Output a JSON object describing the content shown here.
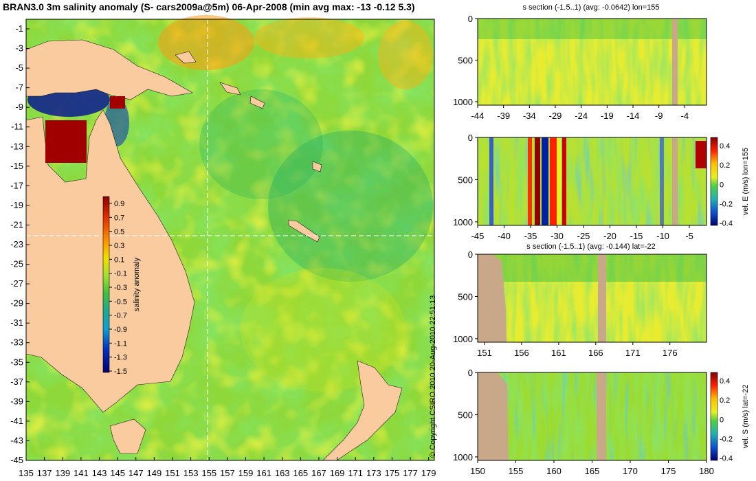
{
  "main_map": {
    "title": "BRAN3.0 3m salinity anomaly (S- cars2009a@5m) 06-Apr-2008 (min avg max: -13 -0.12 5.3)",
    "lat_ticks": [
      "-1",
      "-3",
      "-5",
      "-7",
      "-9",
      "-11",
      "-13",
      "-15",
      "-17",
      "-19",
      "-21",
      "-23",
      "-25",
      "-27",
      "-29",
      "-31",
      "-33",
      "-35",
      "-37",
      "-39",
      "-41",
      "-43",
      "-45"
    ],
    "lon_ticks": [
      "135",
      "137",
      "139",
      "141",
      "143",
      "145",
      "147",
      "149",
      "151",
      "153",
      "155",
      "157",
      "159",
      "161",
      "163",
      "165",
      "167",
      "169",
      "171",
      "173",
      "175",
      "177",
      "179"
    ],
    "crosshair": {
      "lon": 155,
      "lat": -22
    },
    "colorbar": {
      "label": "salinity anomaly",
      "ticks": [
        "0.9",
        "0.7",
        "0.5",
        "0.3",
        "0.1",
        "-0.1",
        "-0.3",
        "-0.5",
        "-0.7",
        "-0.9",
        "-1.1",
        "-1.3",
        "-1.5"
      ],
      "colors": [
        "#8b0000",
        "#d42a00",
        "#ff7000",
        "#ffc000",
        "#e8f000",
        "#a8e82a",
        "#4cc84c",
        "#20a878",
        "#1898b8",
        "#1060d0",
        "#0020b0",
        "#000080"
      ]
    }
  },
  "copyright": "© Copyright CSIRO 2010   20-Aug-2010 22:51:13",
  "panels": [
    {
      "title": "s section (-1.5..1) (avg: -0.0642) lon=155",
      "y_ticks": [
        "0",
        "500",
        "1000"
      ],
      "x_ticks": [
        "-44",
        "-39",
        "-34",
        "-29",
        "-24",
        "-19",
        "-14",
        "-9",
        "-4"
      ],
      "colorbar": null
    },
    {
      "title": "",
      "y_ticks": [
        "0",
        "500",
        "1000"
      ],
      "x_ticks": [
        "-45",
        "-40",
        "-35",
        "-30",
        "-25",
        "-20",
        "-15",
        "-10",
        "-5"
      ],
      "colorbar": {
        "label": "vel. E (m/s) lon=155",
        "ticks": [
          "0.4",
          "0.2",
          "0",
          "-0.2",
          "-0.4"
        ]
      }
    },
    {
      "title": "s section (-1.5..1) (avg: -0.144) lat=-22",
      "y_ticks": [
        "0",
        "500",
        "1000"
      ],
      "x_ticks": [
        "151",
        "156",
        "161",
        "166",
        "171",
        "176"
      ],
      "colorbar": null
    },
    {
      "title": "",
      "y_ticks": [
        "0",
        "500",
        "1000"
      ],
      "x_ticks": [
        "150",
        "155",
        "160",
        "165",
        "170",
        "175",
        "180"
      ],
      "colorbar": {
        "label": "vel. S (m/s) lat=-22",
        "ticks": [
          "0.4",
          "0.2",
          "0",
          "-0.2",
          "-0.4"
        ]
      }
    }
  ],
  "colors": {
    "land": "#fbcba0",
    "section_land": "#c8a888",
    "background": "#ffffff"
  }
}
